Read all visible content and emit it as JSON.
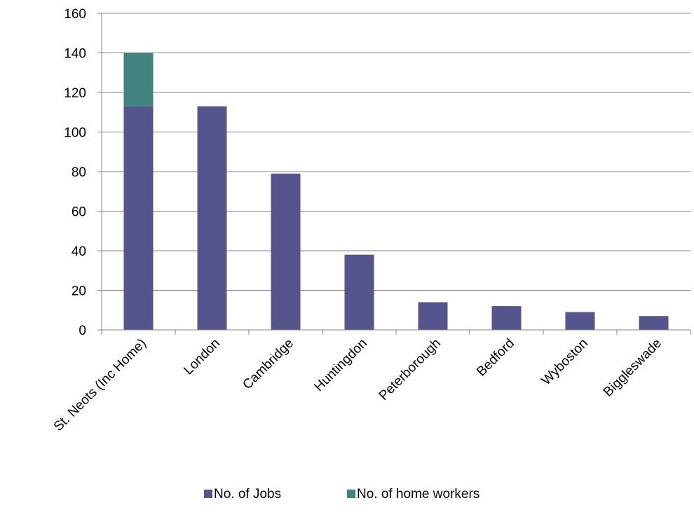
{
  "chart_data": {
    "type": "bar",
    "stacked": true,
    "categories": [
      "St. Neots  (Inc Home)",
      "London",
      "Cambridge",
      "Huntingdon",
      "Peterborough",
      "Bedford",
      "Wyboston",
      "Biggleswade"
    ],
    "series": [
      {
        "name": "No. of Jobs",
        "color": "#55548C",
        "values": [
          113,
          113,
          79,
          38,
          14,
          12,
          9,
          7
        ]
      },
      {
        "name": "No. of home workers",
        "color": "#41837F",
        "values": [
          27,
          0,
          0,
          0,
          0,
          0,
          0,
          0
        ]
      }
    ],
    "ylim": [
      0,
      160
    ],
    "yticks": [
      0,
      20,
      40,
      60,
      80,
      100,
      120,
      140,
      160
    ],
    "grid": true,
    "legend_position": "bottom"
  }
}
